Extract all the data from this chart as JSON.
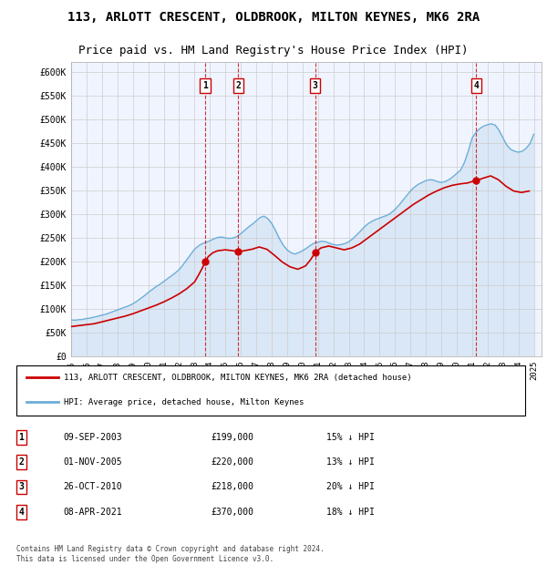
{
  "title1": "113, ARLOTT CRESCENT, OLDBROOK, MILTON KEYNES, MK6 2RA",
  "title2": "Price paid vs. HM Land Registry's House Price Index (HPI)",
  "xlabel": "",
  "ylabel": "",
  "ylim": [
    0,
    620000
  ],
  "xlim_start": 1995.0,
  "xlim_end": 2025.5,
  "yticks": [
    0,
    50000,
    100000,
    150000,
    200000,
    250000,
    300000,
    350000,
    400000,
    450000,
    500000,
    550000,
    600000
  ],
  "ytick_labels": [
    "£0",
    "£50K",
    "£100K",
    "£150K",
    "£200K",
    "£250K",
    "£300K",
    "£350K",
    "£400K",
    "£450K",
    "£500K",
    "£550K",
    "£600K"
  ],
  "xtick_years": [
    1995,
    1996,
    1997,
    1998,
    1999,
    2000,
    2001,
    2002,
    2003,
    2004,
    2005,
    2006,
    2007,
    2008,
    2009,
    2010,
    2011,
    2012,
    2013,
    2014,
    2015,
    2016,
    2017,
    2018,
    2019,
    2020,
    2021,
    2022,
    2023,
    2024,
    2025
  ],
  "sale_dates": [
    2003.69,
    2005.84,
    2010.82,
    2021.27
  ],
  "sale_prices": [
    199000,
    220000,
    218000,
    370000
  ],
  "sale_labels": [
    "1",
    "2",
    "3",
    "4"
  ],
  "sale_annotations": [
    {
      "num": "1",
      "date": "09-SEP-2003",
      "price": "£199,000",
      "pct": "15% ↓ HPI"
    },
    {
      "num": "2",
      "date": "01-NOV-2005",
      "price": "£220,000",
      "pct": "13% ↓ HPI"
    },
    {
      "num": "3",
      "date": "26-OCT-2010",
      "price": "£218,000",
      "pct": "20% ↓ HPI"
    },
    {
      "num": "4",
      "date": "08-APR-2021",
      "price": "£370,000",
      "pct": "18% ↓ HPI"
    }
  ],
  "hpi_color": "#6baed6",
  "hpi_fill_color": "#c6dbef",
  "price_color": "#cc0000",
  "dashed_line_color": "#cc0000",
  "background_color": "#f0f4ff",
  "grid_color": "#cccccc",
  "legend_label_price": "113, ARLOTT CRESCENT, OLDBROOK, MILTON KEYNES, MK6 2RA (detached house)",
  "legend_label_hpi": "HPI: Average price, detached house, Milton Keynes",
  "footer": "Contains HM Land Registry data © Crown copyright and database right 2024.\nThis data is licensed under the Open Government Licence v3.0.",
  "hpi_years": [
    1995.0,
    1995.25,
    1995.5,
    1995.75,
    1996.0,
    1996.25,
    1996.5,
    1996.75,
    1997.0,
    1997.25,
    1997.5,
    1997.75,
    1998.0,
    1998.25,
    1998.5,
    1998.75,
    1999.0,
    1999.25,
    1999.5,
    1999.75,
    2000.0,
    2000.25,
    2000.5,
    2000.75,
    2001.0,
    2001.25,
    2001.5,
    2001.75,
    2002.0,
    2002.25,
    2002.5,
    2002.75,
    2003.0,
    2003.25,
    2003.5,
    2003.75,
    2004.0,
    2004.25,
    2004.5,
    2004.75,
    2005.0,
    2005.25,
    2005.5,
    2005.75,
    2006.0,
    2006.25,
    2006.5,
    2006.75,
    2007.0,
    2007.25,
    2007.5,
    2007.75,
    2008.0,
    2008.25,
    2008.5,
    2008.75,
    2009.0,
    2009.25,
    2009.5,
    2009.75,
    2010.0,
    2010.25,
    2010.5,
    2010.75,
    2011.0,
    2011.25,
    2011.5,
    2011.75,
    2012.0,
    2012.25,
    2012.5,
    2012.75,
    2013.0,
    2013.25,
    2013.5,
    2013.75,
    2014.0,
    2014.25,
    2014.5,
    2014.75,
    2015.0,
    2015.25,
    2015.5,
    2015.75,
    2016.0,
    2016.25,
    2016.5,
    2016.75,
    2017.0,
    2017.25,
    2017.5,
    2017.75,
    2018.0,
    2018.25,
    2018.5,
    2018.75,
    2019.0,
    2019.25,
    2019.5,
    2019.75,
    2020.0,
    2020.25,
    2020.5,
    2020.75,
    2021.0,
    2021.25,
    2021.5,
    2021.75,
    2022.0,
    2022.25,
    2022.5,
    2022.75,
    2023.0,
    2023.25,
    2023.5,
    2023.75,
    2024.0,
    2024.25,
    2024.5,
    2024.75,
    2025.0
  ],
  "hpi_values": [
    76000,
    75500,
    76500,
    77000,
    79000,
    80000,
    82000,
    84000,
    86000,
    88000,
    91000,
    94000,
    97000,
    100000,
    103000,
    106000,
    110000,
    115000,
    121000,
    127000,
    134000,
    140000,
    146000,
    151000,
    157000,
    163000,
    169000,
    175000,
    182000,
    192000,
    203000,
    214000,
    225000,
    232000,
    237000,
    240000,
    243000,
    247000,
    250000,
    251000,
    249000,
    248000,
    249000,
    252000,
    258000,
    265000,
    272000,
    278000,
    285000,
    292000,
    295000,
    290000,
    280000,
    265000,
    248000,
    234000,
    224000,
    218000,
    215000,
    218000,
    222000,
    227000,
    233000,
    238000,
    240000,
    242000,
    241000,
    238000,
    235000,
    234000,
    235000,
    237000,
    241000,
    247000,
    255000,
    263000,
    272000,
    279000,
    284000,
    288000,
    291000,
    294000,
    297000,
    302000,
    309000,
    318000,
    328000,
    338000,
    348000,
    356000,
    362000,
    366000,
    370000,
    372000,
    371000,
    368000,
    366000,
    368000,
    372000,
    378000,
    385000,
    392000,
    408000,
    432000,
    460000,
    472000,
    480000,
    485000,
    488000,
    490000,
    487000,
    476000,
    460000,
    445000,
    436000,
    432000,
    430000,
    432000,
    438000,
    448000,
    468000
  ],
  "price_curve_years": [
    1995.0,
    1995.5,
    1996.0,
    1996.5,
    1997.0,
    1997.5,
    1998.0,
    1998.5,
    1999.0,
    1999.5,
    2000.0,
    2000.5,
    2001.0,
    2001.5,
    2002.0,
    2002.5,
    2003.0,
    2003.25,
    2003.5,
    2003.69,
    2003.9,
    2004.2,
    2004.5,
    2005.0,
    2005.5,
    2005.84,
    2006.2,
    2006.7,
    2007.2,
    2007.7,
    2008.2,
    2008.7,
    2009.2,
    2009.7,
    2010.2,
    2010.5,
    2010.82,
    2011.2,
    2011.7,
    2012.2,
    2012.7,
    2013.2,
    2013.7,
    2014.2,
    2014.7,
    2015.2,
    2015.7,
    2016.2,
    2016.7,
    2017.2,
    2017.7,
    2018.2,
    2018.7,
    2019.2,
    2019.7,
    2020.2,
    2020.7,
    2021.0,
    2021.27,
    2021.7,
    2022.2,
    2022.7,
    2023.2,
    2023.7,
    2024.2,
    2024.7
  ],
  "price_curve_values": [
    62000,
    64000,
    66000,
    68000,
    72000,
    76000,
    80000,
    84000,
    89000,
    95000,
    101000,
    107000,
    114000,
    122000,
    131000,
    142000,
    156000,
    170000,
    185000,
    199000,
    210000,
    218000,
    222000,
    224000,
    222000,
    220000,
    222000,
    225000,
    230000,
    225000,
    212000,
    198000,
    188000,
    183000,
    190000,
    202000,
    218000,
    228000,
    232000,
    228000,
    224000,
    228000,
    236000,
    248000,
    260000,
    272000,
    284000,
    296000,
    308000,
    320000,
    330000,
    340000,
    348000,
    355000,
    360000,
    363000,
    365000,
    368000,
    370000,
    375000,
    380000,
    372000,
    358000,
    348000,
    345000,
    348000
  ]
}
